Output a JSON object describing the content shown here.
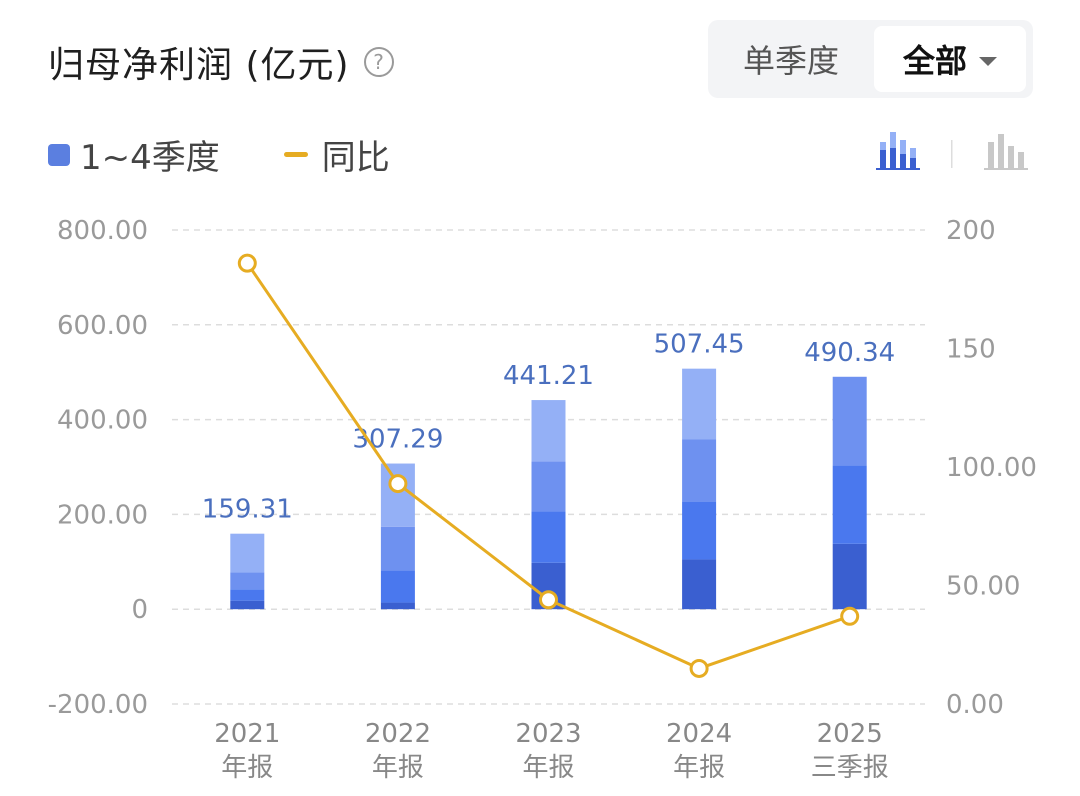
{
  "header": {
    "title": "归母净利润 (亿元)",
    "help_icon": "?",
    "tabs": [
      {
        "label": "单季度",
        "selected": false
      },
      {
        "label": "全部",
        "selected": true
      }
    ]
  },
  "legend": {
    "bars": "1~4季度",
    "line": "同比"
  },
  "colors": {
    "q1": "#3a5fd0",
    "q2": "#4a78ee",
    "q3": "#6e91f0",
    "q4": "#94b0f6",
    "line": "#e6ac22",
    "label": "#4a6fbe",
    "grid": "#dddddd"
  },
  "chart_data": {
    "type": "bar",
    "stacked": true,
    "categories": [
      [
        "2021",
        "年报"
      ],
      [
        "2022",
        "年报"
      ],
      [
        "2023",
        "年报"
      ],
      [
        "2024",
        "年报"
      ],
      [
        "2025",
        "三季报"
      ]
    ],
    "series": [
      {
        "values": [
          18,
          14,
          98,
          105,
          138
        ]
      },
      {
        "values": [
          24,
          68,
          108,
          122,
          165
        ]
      },
      {
        "values": [
          36,
          92,
          106,
          131,
          187.34
        ]
      },
      {
        "values": [
          81.31,
          133.29,
          129.21,
          149.45,
          0
        ]
      }
    ],
    "totals": [
      "159.31",
      "307.29",
      "441.21",
      "507.45",
      "490.34"
    ],
    "line": {
      "name": "同比",
      "values": [
        186,
        93,
        44,
        15,
        37
      ]
    },
    "ylim": [
      -200,
      800
    ],
    "y_ticks": [
      "800.00",
      "600.00",
      "400.00",
      "200.00",
      "0",
      "-200.00"
    ],
    "y2lim": [
      0,
      200
    ],
    "y2_ticks": [
      "200",
      "150",
      "100.00",
      "50.00",
      "0.00"
    ],
    "grid": true
  }
}
